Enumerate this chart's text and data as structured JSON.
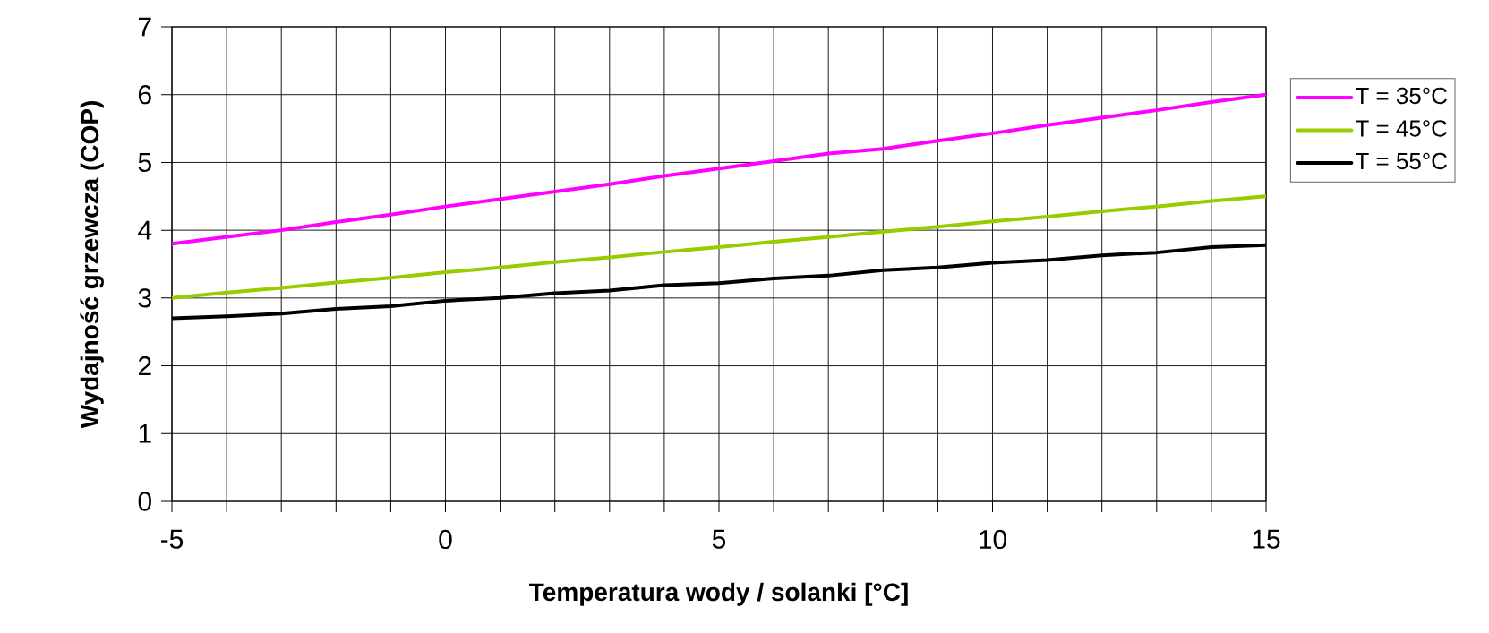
{
  "chart_data": {
    "type": "line",
    "xlabel": "Temperatura wody / solanki [°C]",
    "ylabel": "Wydajność grzewcza (COP)",
    "x": [
      -5,
      -4,
      -3,
      -2,
      -1,
      0,
      1,
      2,
      3,
      4,
      5,
      6,
      7,
      8,
      9,
      10,
      11,
      12,
      13,
      14,
      15
    ],
    "series": [
      {
        "name": "T =  35°C",
        "color": "#ff00ff",
        "values": [
          3.8,
          3.9,
          4.0,
          4.12,
          4.23,
          4.35,
          4.46,
          4.57,
          4.68,
          4.8,
          4.91,
          5.02,
          5.13,
          5.2,
          5.32,
          5.43,
          5.55,
          5.66,
          5.77,
          5.89,
          6.0
        ]
      },
      {
        "name": "T =  45°C",
        "color": "#99cc00",
        "values": [
          3.0,
          3.08,
          3.15,
          3.23,
          3.3,
          3.38,
          3.45,
          3.53,
          3.6,
          3.68,
          3.75,
          3.83,
          3.9,
          3.98,
          4.05,
          4.13,
          4.2,
          4.28,
          4.35,
          4.43,
          4.5
        ]
      },
      {
        "name": "T =  55°C",
        "color": "#000000",
        "values": [
          2.7,
          2.73,
          2.77,
          2.84,
          2.88,
          2.96,
          3.0,
          3.07,
          3.11,
          3.19,
          3.22,
          3.29,
          3.33,
          3.41,
          3.45,
          3.52,
          3.56,
          3.63,
          3.67,
          3.75,
          3.78
        ]
      }
    ],
    "xlim": [
      -5,
      15
    ],
    "xticks": [
      -5,
      {
        "value": -4,
        "label": null
      },
      {
        "value": -3,
        "label": null
      },
      {
        "value": -2,
        "label": null
      },
      {
        "value": -1,
        "label": null
      },
      0,
      {
        "value": 1,
        "label": null
      },
      {
        "value": 2,
        "label": null
      },
      {
        "value": 3,
        "label": null
      },
      {
        "value": 4,
        "label": null
      },
      5,
      {
        "value": 6,
        "label": null
      },
      {
        "value": 7,
        "label": null
      },
      {
        "value": 8,
        "label": null
      },
      {
        "value": 9,
        "label": null
      },
      10,
      {
        "value": 11,
        "label": null
      },
      {
        "value": 12,
        "label": null
      },
      {
        "value": 13,
        "label": null
      },
      {
        "value": 14,
        "label": null
      },
      15
    ],
    "ylim": [
      0,
      7
    ],
    "yticks": [
      0,
      1,
      2,
      3,
      4,
      5,
      6,
      7
    ],
    "grid": true,
    "legend": "right",
    "marker": "none",
    "line_style": "solid"
  }
}
